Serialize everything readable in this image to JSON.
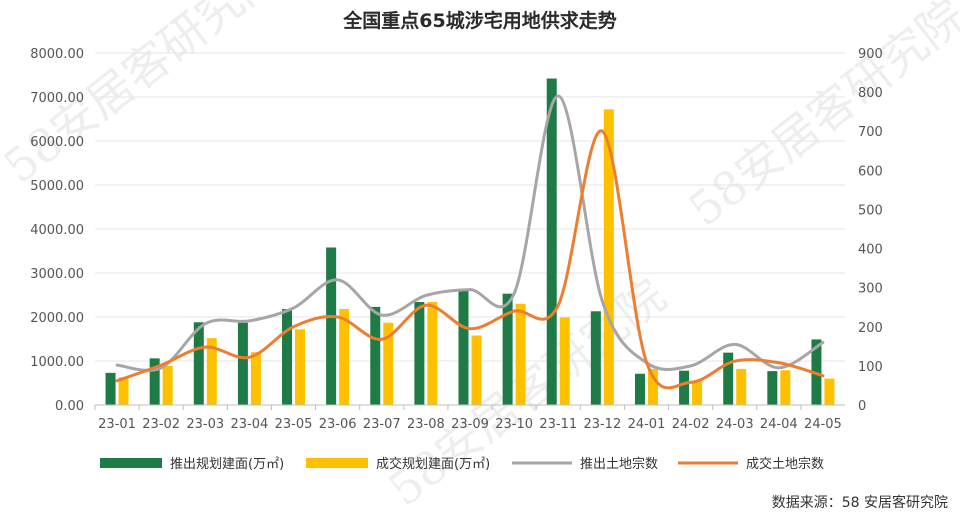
{
  "chart_data": {
    "type": "bar",
    "title": "全国重点65城涉宅用地供求走势",
    "categories": [
      "23-01",
      "23-02",
      "23-03",
      "23-04",
      "23-05",
      "23-06",
      "23-07",
      "23-08",
      "23-09",
      "23-10",
      "23-11",
      "23-12",
      "24-01",
      "24-02",
      "24-03",
      "24-04",
      "24-05"
    ],
    "y_left": {
      "ylim": [
        0,
        8000
      ],
      "ticks": [
        "0.00",
        "1000.00",
        "2000.00",
        "3000.00",
        "4000.00",
        "5000.00",
        "6000.00",
        "7000.00",
        "8000.00"
      ]
    },
    "y_right": {
      "ylim": [
        0,
        900
      ],
      "ticks": [
        "0",
        "100",
        "200",
        "300",
        "400",
        "500",
        "600",
        "700",
        "800",
        "900"
      ]
    },
    "series": [
      {
        "name": "推出规划建面(万㎡)",
        "kind": "bar",
        "axis": "left",
        "color": "#1e7b46",
        "values": [
          730,
          1060,
          1880,
          1870,
          2180,
          3580,
          2230,
          2340,
          2640,
          2530,
          7420,
          2130,
          710,
          780,
          1190,
          770,
          1490
        ]
      },
      {
        "name": "成交规划建面(万㎡)",
        "kind": "bar",
        "axis": "left",
        "color": "#ffc000",
        "values": [
          630,
          890,
          1520,
          1200,
          1720,
          2180,
          1870,
          2340,
          1580,
          2300,
          1990,
          6720,
          820,
          540,
          820,
          790,
          600
        ]
      },
      {
        "name": "推出土地宗数",
        "kind": "line",
        "axis": "right",
        "color": "#a6a6a6",
        "values": [
          102,
          95,
          208,
          215,
          248,
          320,
          230,
          280,
          295,
          285,
          790,
          265,
          108,
          100,
          155,
          95,
          160
        ]
      },
      {
        "name": "成交土地宗数",
        "kind": "line",
        "axis": "right",
        "color": "#ed7d31",
        "values": [
          62,
          102,
          148,
          122,
          200,
          225,
          168,
          255,
          195,
          240,
          255,
          700,
          110,
          58,
          112,
          108,
          75
        ]
      }
    ],
    "legend_position": "bottom",
    "grid": "horizontal"
  },
  "source_text": "数据来源：58 安居客研究院",
  "watermark_text": "58安居客研究院"
}
